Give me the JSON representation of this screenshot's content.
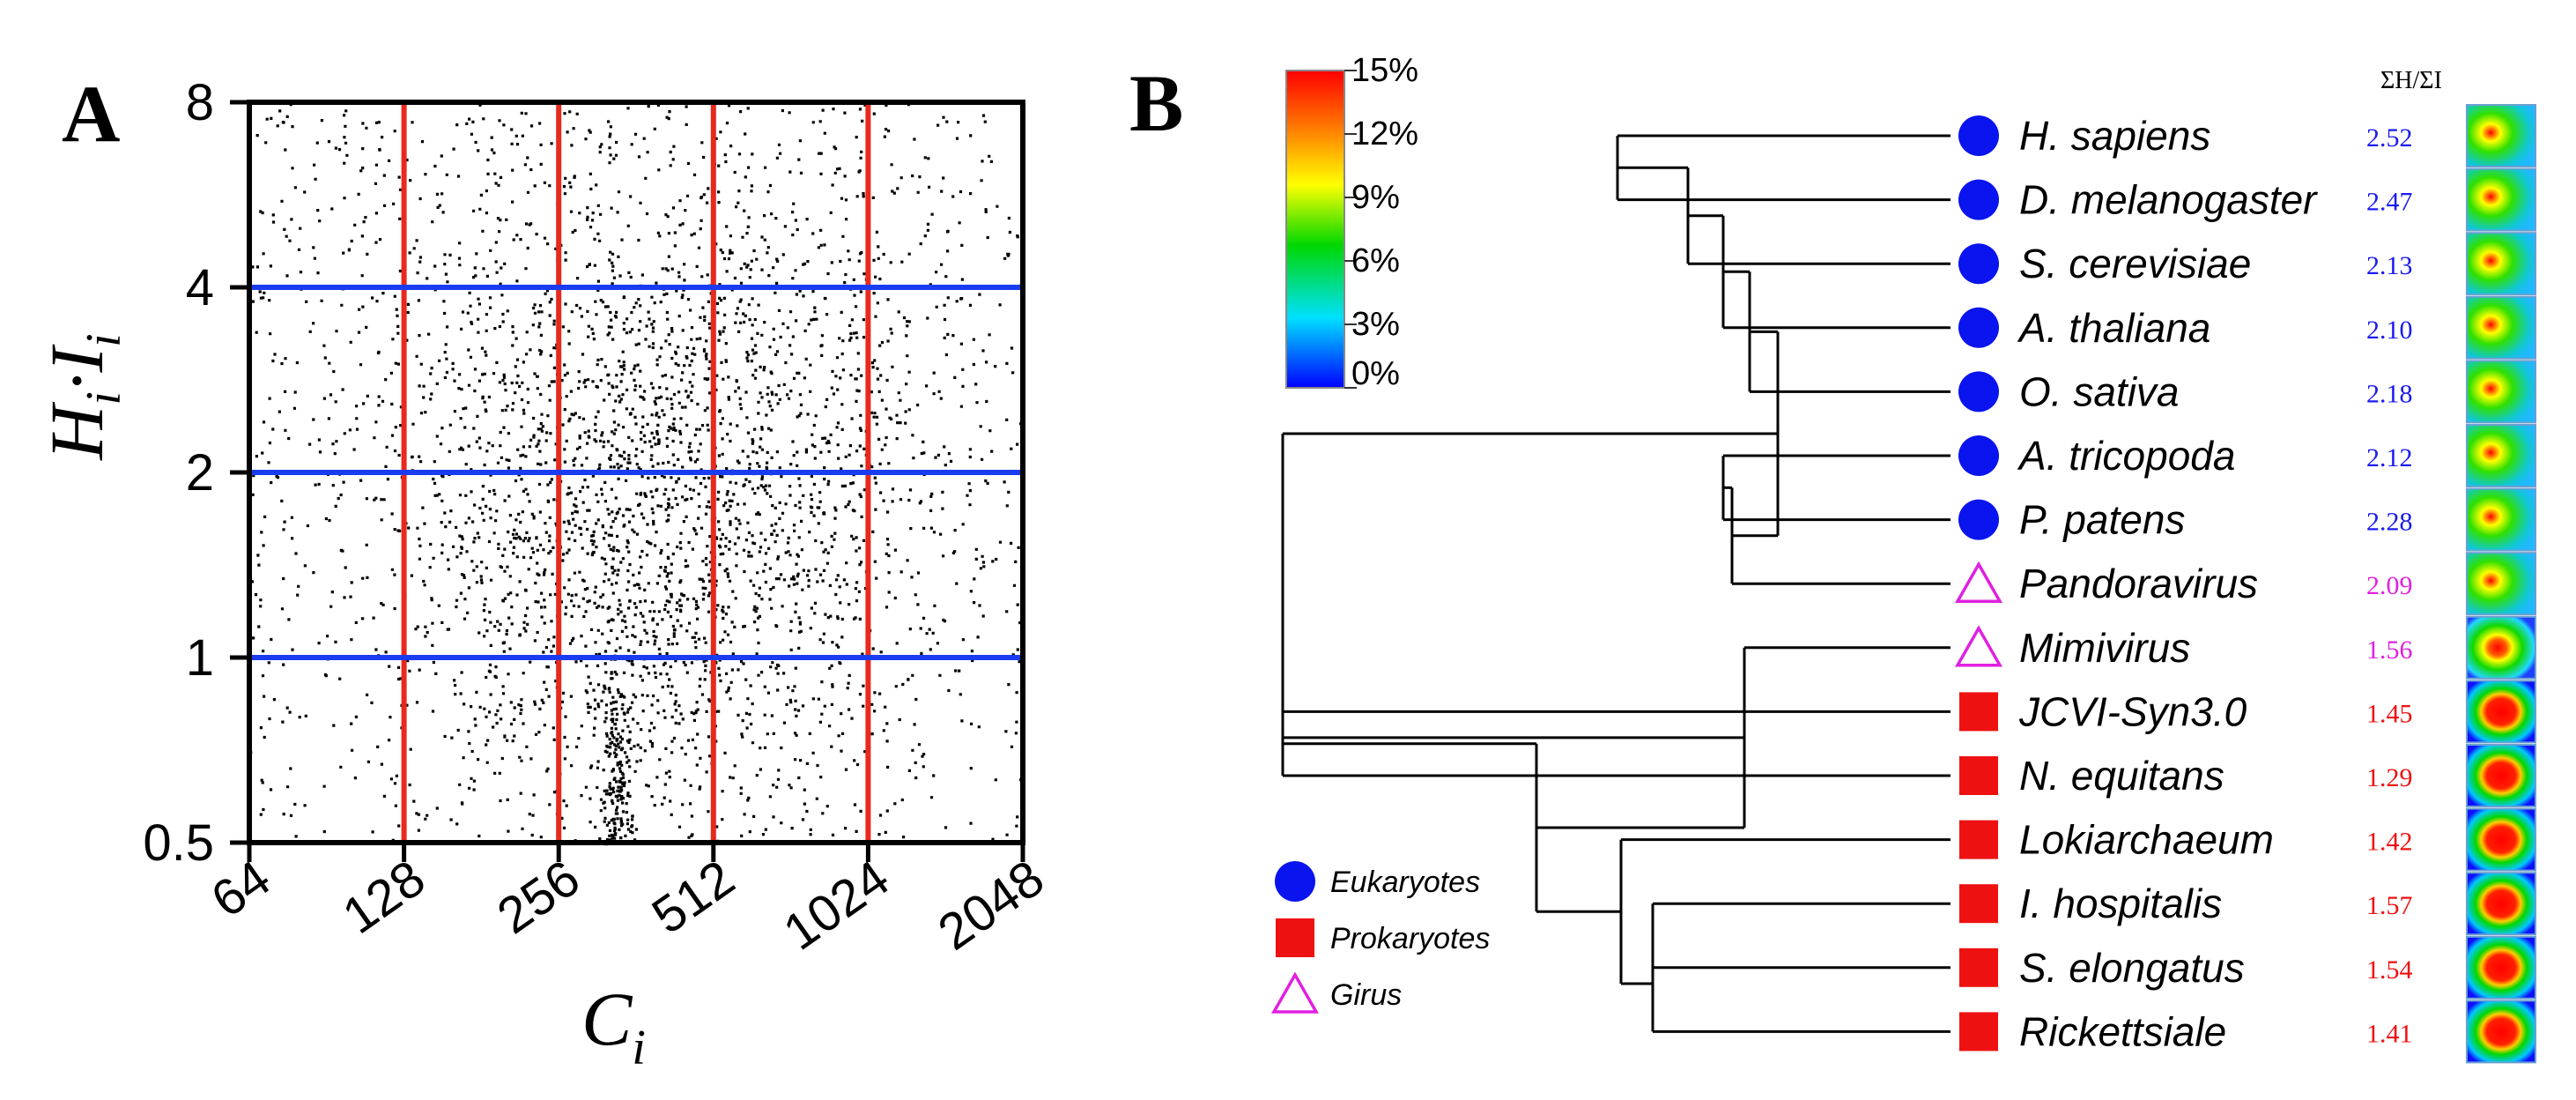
{
  "chart_data": [
    {
      "type": "scatter",
      "panel_label": "A",
      "xlabel": "C",
      "xlabel_sub": "i",
      "ylabel": "H·I",
      "ylabel_parts": {
        "h": "H",
        "h_sub": "i",
        "dot": "·",
        "i": "I",
        "i_sub": "i"
      },
      "xscale": "log2",
      "yscale": "log2",
      "xlim": [
        64,
        2048
      ],
      "ylim": [
        0.5,
        8
      ],
      "xticks": [
        "64",
        "128",
        "256",
        "512",
        "1024",
        "2048"
      ],
      "yticks": [
        "0.5",
        "1",
        "2",
        "4",
        "8"
      ],
      "vertical_lines": {
        "x": [
          128,
          256,
          512,
          1024
        ],
        "color": "#e8291c"
      },
      "horizontal_lines": {
        "y": [
          1,
          2,
          4
        ],
        "color": "#1a3cf0"
      },
      "points": {
        "n": 11000,
        "color": "#000000",
        "center_x": 400,
        "center_y": 1.7,
        "description_density": "dense cloud centered near C=400, H·I=1.7; narrow column near C=330 at H·I=0.5"
      }
    },
    {
      "type": "dendrogram",
      "panel_label": "B",
      "header": "ΣH/ΣI",
      "colorbar": {
        "ticks": [
          "15%",
          "12%",
          "9%",
          "6%",
          "3%",
          "0%"
        ],
        "colors": [
          "#ff0000",
          "#ff7a00",
          "#ffff00",
          "#00d800",
          "#00e0ff",
          "#0000ff"
        ]
      },
      "legend": [
        {
          "label": "Eukaryotes",
          "marker": "circle",
          "color": "#0a14ee"
        },
        {
          "label": "Prokaryotes",
          "marker": "square",
          "color": "#ee1111"
        },
        {
          "label": "Girus",
          "marker": "triangle",
          "color": "#e020e0"
        }
      ],
      "leaves": [
        {
          "name": "H. sapiens",
          "group": "Eukaryotes",
          "ratio": "2.52",
          "ratio_color": "#1a1aee",
          "heat": "cold"
        },
        {
          "name": "D. melanogaster",
          "group": "Eukaryotes",
          "ratio": "2.47",
          "ratio_color": "#1a1aee",
          "heat": "cold"
        },
        {
          "name": "S. cerevisiae",
          "group": "Eukaryotes",
          "ratio": "2.13",
          "ratio_color": "#1a1aee",
          "heat": "cold"
        },
        {
          "name": "A. thaliana",
          "group": "Eukaryotes",
          "ratio": "2.10",
          "ratio_color": "#1a1aee",
          "heat": "cold"
        },
        {
          "name": "O. sativa",
          "group": "Eukaryotes",
          "ratio": "2.18",
          "ratio_color": "#1a1aee",
          "heat": "cold"
        },
        {
          "name": "A. tricopoda",
          "group": "Eukaryotes",
          "ratio": "2.12",
          "ratio_color": "#1a1aee",
          "heat": "cold"
        },
        {
          "name": "P. patens",
          "group": "Eukaryotes",
          "ratio": "2.28",
          "ratio_color": "#1a1aee",
          "heat": "cold"
        },
        {
          "name": "Pandoravirus",
          "group": "Girus",
          "ratio": "2.09",
          "ratio_color": "#e020e0",
          "heat": "cold"
        },
        {
          "name": "Mimivirus",
          "group": "Girus",
          "ratio": "1.56",
          "ratio_color": "#e020e0",
          "heat": "warm"
        },
        {
          "name": "JCVI-Syn3.0",
          "group": "Prokaryotes",
          "ratio": "1.45",
          "ratio_color": "#ee1111",
          "heat": "hot"
        },
        {
          "name": "N. equitans",
          "group": "Prokaryotes",
          "ratio": "1.29",
          "ratio_color": "#ee1111",
          "heat": "hot"
        },
        {
          "name": "Lokiarchaeum",
          "group": "Prokaryotes",
          "ratio": "1.42",
          "ratio_color": "#ee1111",
          "heat": "hot"
        },
        {
          "name": "I. hospitalis",
          "group": "Prokaryotes",
          "ratio": "1.57",
          "ratio_color": "#ee1111",
          "heat": "hot"
        },
        {
          "name": "S. elongatus",
          "group": "Prokaryotes",
          "ratio": "1.54",
          "ratio_color": "#ee1111",
          "heat": "hot"
        },
        {
          "name": "Rickettsiale",
          "group": "Prokaryotes",
          "ratio": "1.41",
          "ratio_color": "#ee1111",
          "heat": "hot"
        }
      ],
      "tree": {
        "children": [
          {
            "children": [
              {
                "children": [
                  {
                    "children": [
                      {
                        "children": [
                          0,
                          1
                        ]
                      },
                      2
                    ]
                  },
                  3
                ]
              },
              4
            ]
          },
          {
            "children": [
              {
                "children": [
                  5,
                  6
                ]
              },
              7
            ]
          }
        ],
        "second": {
          "children": [
            8,
            {
              "children": [
                {
                  "children": [
                    9,
                    10
                  ]
                },
                {
                  "children": [
                    11,
                    {
                      "children": [
                        {
                          "children": [
                            12,
                            13
                          ]
                        },
                        14
                      ]
                    }
                  ]
                }
              ]
            }
          ]
        }
      }
    }
  ]
}
